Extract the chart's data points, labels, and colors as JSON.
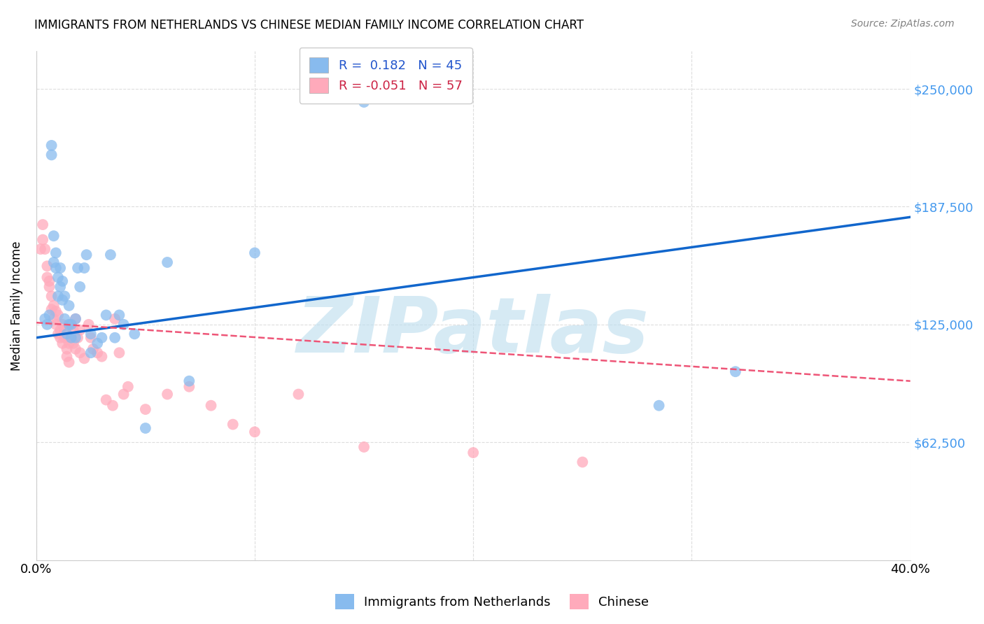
{
  "title": "IMMIGRANTS FROM NETHERLANDS VS CHINESE MEDIAN FAMILY INCOME CORRELATION CHART",
  "source": "Source: ZipAtlas.com",
  "ylabel": "Median Family Income",
  "yticks": [
    0,
    62500,
    125000,
    187500,
    250000
  ],
  "ytick_labels": [
    "",
    "$62,500",
    "$125,000",
    "$187,500",
    "$250,000"
  ],
  "xlim": [
    0.0,
    0.4
  ],
  "ylim": [
    0,
    270000
  ],
  "xtick_vals": [
    0.0,
    0.1,
    0.2,
    0.3,
    0.4
  ],
  "blue_R": 0.182,
  "blue_N": 45,
  "pink_R": -0.051,
  "pink_N": 57,
  "blue_color": "#88BBEE",
  "pink_color": "#FFAABB",
  "blue_line_color": "#1166CC",
  "pink_line_color": "#EE5577",
  "watermark": "ZIPatlas",
  "watermark_color": "#BBDDEE",
  "blue_line_x": [
    0.0,
    0.4
  ],
  "blue_line_y": [
    118000,
    182000
  ],
  "pink_line_x": [
    0.0,
    0.4
  ],
  "pink_line_y": [
    126000,
    95000
  ],
  "blue_x": [
    0.004,
    0.005,
    0.006,
    0.007,
    0.007,
    0.008,
    0.008,
    0.009,
    0.009,
    0.01,
    0.01,
    0.011,
    0.011,
    0.012,
    0.012,
    0.013,
    0.013,
    0.014,
    0.015,
    0.015,
    0.016,
    0.016,
    0.018,
    0.018,
    0.019,
    0.02,
    0.022,
    0.023,
    0.025,
    0.025,
    0.028,
    0.03,
    0.032,
    0.034,
    0.036,
    0.038,
    0.04,
    0.045,
    0.05,
    0.06,
    0.07,
    0.1,
    0.15,
    0.285,
    0.32
  ],
  "blue_y": [
    128000,
    125000,
    130000,
    215000,
    220000,
    158000,
    172000,
    155000,
    163000,
    140000,
    150000,
    145000,
    155000,
    138000,
    148000,
    128000,
    140000,
    120000,
    125000,
    135000,
    118000,
    125000,
    118000,
    128000,
    155000,
    145000,
    155000,
    162000,
    110000,
    120000,
    115000,
    118000,
    130000,
    162000,
    118000,
    130000,
    125000,
    120000,
    70000,
    158000,
    95000,
    163000,
    243000,
    82000,
    100000
  ],
  "pink_x": [
    0.002,
    0.003,
    0.003,
    0.004,
    0.005,
    0.005,
    0.006,
    0.006,
    0.007,
    0.007,
    0.008,
    0.008,
    0.009,
    0.009,
    0.01,
    0.01,
    0.011,
    0.011,
    0.012,
    0.012,
    0.013,
    0.013,
    0.014,
    0.014,
    0.015,
    0.015,
    0.016,
    0.016,
    0.017,
    0.017,
    0.018,
    0.018,
    0.019,
    0.02,
    0.02,
    0.022,
    0.024,
    0.025,
    0.026,
    0.028,
    0.03,
    0.032,
    0.035,
    0.036,
    0.038,
    0.04,
    0.042,
    0.05,
    0.06,
    0.07,
    0.08,
    0.09,
    0.1,
    0.12,
    0.15,
    0.2,
    0.25
  ],
  "pink_y": [
    165000,
    178000,
    170000,
    165000,
    150000,
    156000,
    145000,
    148000,
    140000,
    133000,
    135000,
    128000,
    132000,
    125000,
    130000,
    120000,
    118000,
    122000,
    125000,
    115000,
    122000,
    118000,
    112000,
    108000,
    115000,
    105000,
    118000,
    125000,
    122000,
    115000,
    112000,
    128000,
    118000,
    122000,
    110000,
    107000,
    125000,
    118000,
    112000,
    110000,
    108000,
    85000,
    82000,
    128000,
    110000,
    88000,
    92000,
    80000,
    88000,
    92000,
    82000,
    72000,
    68000,
    88000,
    60000,
    57000,
    52000
  ]
}
